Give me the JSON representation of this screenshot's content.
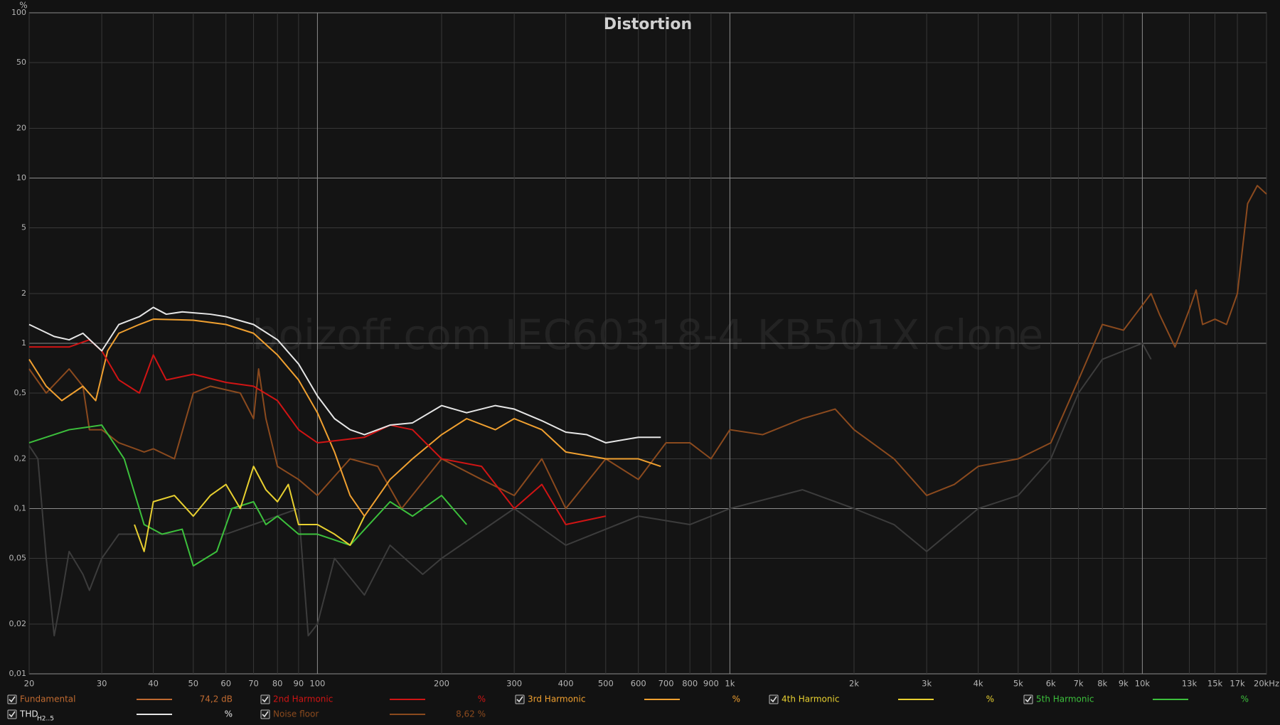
{
  "chart_data": {
    "type": "line",
    "title": "Distortion",
    "watermark": "boizoff.com IEC60318-4 KB501X clone",
    "y_unit": "%",
    "log_x": true,
    "log_y": true,
    "grid": true,
    "xlim": [
      20,
      20000
    ],
    "ylim": [
      0.01,
      100
    ],
    "xticks": [
      20,
      30,
      40,
      50,
      60,
      70,
      80,
      90,
      100,
      200,
      300,
      400,
      500,
      600,
      700,
      800,
      900,
      {
        "value": 1000,
        "label": "1k"
      },
      {
        "value": 2000,
        "label": "2k"
      },
      {
        "value": 3000,
        "label": "3k"
      },
      {
        "value": 4000,
        "label": "4k"
      },
      {
        "value": 5000,
        "label": "5k"
      },
      {
        "value": 6000,
        "label": "6k"
      },
      {
        "value": 7000,
        "label": "7k"
      },
      {
        "value": 8000,
        "label": "8k"
      },
      {
        "value": 9000,
        "label": "9k"
      },
      {
        "value": 10000,
        "label": "10k"
      },
      {
        "value": 13000,
        "label": "13k"
      },
      {
        "value": 15000,
        "label": "15k"
      },
      {
        "value": 17000,
        "label": "17k"
      },
      {
        "value": 20000,
        "label": "20kHz"
      }
    ],
    "yticks": [
      {
        "value": 0.01,
        "label": "0,01"
      },
      {
        "value": 0.02,
        "label": "0,02"
      },
      {
        "value": 0.05,
        "label": "0,05"
      },
      {
        "value": 0.1,
        "label": "0,1"
      },
      {
        "value": 0.2,
        "label": "0,2"
      },
      {
        "value": 0.5,
        "label": "0,5"
      },
      1,
      2,
      5,
      10,
      20,
      50,
      100
    ],
    "series": [
      {
        "color": "#3c3c3c",
        "x": [
          20,
          21,
          22,
          23,
          24,
          25,
          27,
          28,
          30,
          33,
          40,
          60,
          90,
          95,
          100,
          110,
          130,
          150,
          180,
          200,
          300,
          400,
          600,
          800,
          1000,
          1500,
          2000,
          2500,
          3000,
          4000,
          5000,
          6000,
          7000,
          8000,
          10000,
          10500
        ],
        "values": [
          0.24,
          0.2,
          0.05,
          0.017,
          0.03,
          0.055,
          0.04,
          0.032,
          0.05,
          0.07,
          0.07,
          0.07,
          0.1,
          0.017,
          0.02,
          0.05,
          0.03,
          0.06,
          0.04,
          0.05,
          0.1,
          0.06,
          0.09,
          0.08,
          0.1,
          0.13,
          0.1,
          0.08,
          0.055,
          0.1,
          0.12,
          0.2,
          0.5,
          0.8,
          1.0,
          0.8
        ]
      },
      {
        "name": "Noise floor",
        "color": "#8b4a1e",
        "x": [
          20,
          22,
          25,
          27,
          28,
          30,
          33,
          38,
          40,
          45,
          50,
          55,
          65,
          70,
          72,
          75,
          80,
          90,
          100,
          120,
          140,
          160,
          200,
          250,
          300,
          350,
          400,
          500,
          600,
          700,
          800,
          900,
          1000,
          1200,
          1500,
          1800,
          2000,
          2500,
          3000,
          3500,
          4000,
          5000,
          6000,
          7000,
          8000,
          9000,
          10000,
          10500,
          11000,
          12000,
          13000,
          13500,
          14000,
          15000,
          16000,
          17000,
          18000,
          19000,
          20000
        ],
        "values": [
          0.7,
          0.5,
          0.7,
          0.55,
          0.3,
          0.3,
          0.25,
          0.22,
          0.23,
          0.2,
          0.5,
          0.55,
          0.5,
          0.35,
          0.7,
          0.35,
          0.18,
          0.15,
          0.12,
          0.2,
          0.18,
          0.1,
          0.2,
          0.15,
          0.12,
          0.2,
          0.1,
          0.2,
          0.15,
          0.25,
          0.25,
          0.2,
          0.3,
          0.28,
          0.35,
          0.4,
          0.3,
          0.2,
          0.12,
          0.14,
          0.18,
          0.2,
          0.25,
          0.6,
          1.3,
          1.2,
          1.7,
          2.0,
          1.5,
          0.95,
          1.6,
          2.1,
          1.3,
          1.4,
          1.3,
          2.0,
          7,
          9,
          8
        ]
      },
      {
        "name": "5th Harmonic",
        "color": "#3cc03c",
        "x": [
          20,
          25,
          30,
          34,
          38,
          42,
          47,
          50,
          57,
          62,
          70,
          75,
          80,
          90,
          100,
          120,
          150,
          170,
          200,
          230
        ],
        "values": [
          0.25,
          0.3,
          0.32,
          0.2,
          0.08,
          0.07,
          0.075,
          0.045,
          0.055,
          0.1,
          0.11,
          0.08,
          0.09,
          0.07,
          0.07,
          0.06,
          0.11,
          0.09,
          0.12,
          0.08
        ]
      },
      {
        "name": "4th Harmonic",
        "color": "#e8d030",
        "x": [
          36,
          38,
          40,
          45,
          50,
          55,
          60,
          65,
          70,
          75,
          80,
          85,
          90,
          100,
          110,
          120,
          130
        ],
        "values": [
          0.08,
          0.055,
          0.11,
          0.12,
          0.09,
          0.12,
          0.14,
          0.1,
          0.18,
          0.13,
          0.11,
          0.14,
          0.08,
          0.08,
          0.07,
          0.06,
          0.09
        ]
      },
      {
        "name": "3rd Harmonic",
        "color": "#f0a030",
        "x": [
          20,
          22,
          24,
          27,
          29,
          31,
          33,
          37,
          40,
          50,
          60,
          70,
          80,
          90,
          100,
          110,
          120,
          130,
          150,
          170,
          200,
          230,
          270,
          300,
          350,
          400,
          500,
          600,
          680
        ],
        "values": [
          0.8,
          0.55,
          0.45,
          0.55,
          0.45,
          0.9,
          1.15,
          1.3,
          1.4,
          1.38,
          1.3,
          1.15,
          0.85,
          0.6,
          0.38,
          0.22,
          0.12,
          0.09,
          0.15,
          0.2,
          0.28,
          0.35,
          0.3,
          0.35,
          0.3,
          0.22,
          0.2,
          0.2,
          0.18
        ]
      },
      {
        "name": "2nd Harmonic",
        "color": "#d01414",
        "x": [
          20,
          25,
          28,
          30,
          33,
          37,
          40,
          43,
          50,
          60,
          70,
          80,
          90,
          100,
          130,
          150,
          170,
          200,
          250,
          300,
          350,
          400,
          500
        ],
        "values": [
          0.95,
          0.95,
          1.05,
          0.9,
          0.6,
          0.5,
          0.85,
          0.6,
          0.65,
          0.58,
          0.55,
          0.45,
          0.3,
          0.25,
          0.27,
          0.32,
          0.3,
          0.2,
          0.18,
          0.1,
          0.14,
          0.08,
          0.09
        ]
      },
      {
        "name": "THD",
        "color": "#e6e6e6",
        "x": [
          20,
          23,
          25,
          27,
          30,
          33,
          37,
          40,
          43,
          47,
          55,
          60,
          70,
          80,
          90,
          100,
          110,
          120,
          130,
          150,
          170,
          200,
          230,
          270,
          300,
          350,
          400,
          450,
          500,
          600,
          680
        ],
        "values": [
          1.3,
          1.1,
          1.05,
          1.15,
          0.9,
          1.3,
          1.45,
          1.65,
          1.5,
          1.55,
          1.5,
          1.45,
          1.3,
          1.05,
          0.75,
          0.48,
          0.35,
          0.3,
          0.28,
          0.32,
          0.33,
          0.42,
          0.38,
          0.42,
          0.4,
          0.34,
          0.29,
          0.28,
          0.25,
          0.27,
          0.27
        ]
      }
    ],
    "legend": [
      {
        "label": "Fundamental",
        "color": "#c06a30",
        "value_text": "74,2 dB"
      },
      {
        "label": "2nd Harmonic",
        "color": "#d01414",
        "value_text": "%"
      },
      {
        "label": "3rd Harmonic",
        "color": "#f0a030",
        "value_text": "%"
      },
      {
        "label": "4th Harmonic",
        "color": "#e8d030",
        "value_text": "%"
      },
      {
        "label": "5th Harmonic",
        "color": "#3cc03c",
        "value_text": "%"
      },
      {
        "label": "THD",
        "sub": "H2..5",
        "color": "#e6e6e6",
        "value_text": "%"
      },
      {
        "label": "Noise floor",
        "color": "#8b4a1e",
        "value_text": "8,62 %"
      }
    ]
  }
}
